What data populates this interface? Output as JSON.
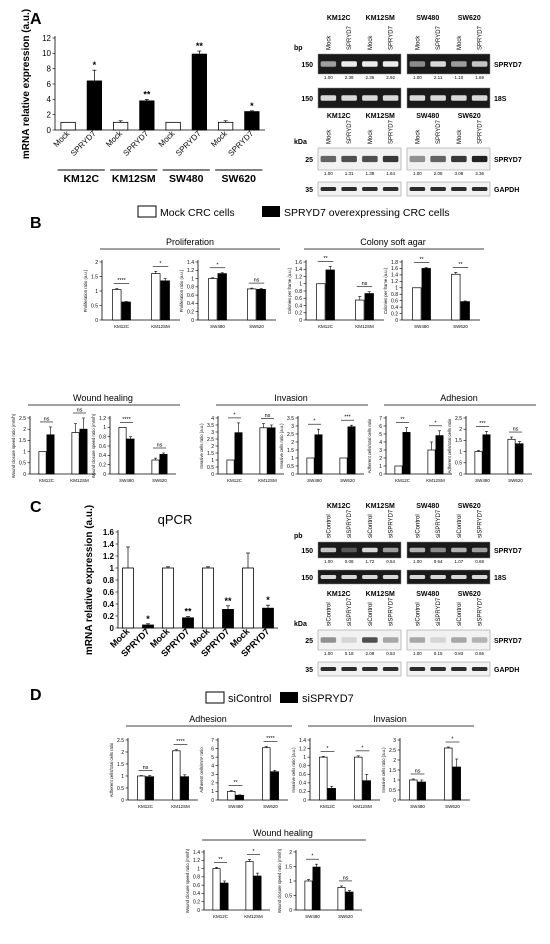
{
  "panels": {
    "A": "A",
    "B": "B",
    "C": "C",
    "D": "D"
  },
  "legend_B": {
    "mock": "Mock CRC cells",
    "overexp": "SPRYD7 overexpressing CRC cells"
  },
  "legend_D": {
    "control": "siControl",
    "si": "siSPRYD7"
  },
  "chart_data": [
    {
      "id": "A-qpcr",
      "type": "bar",
      "ylabel": "mRNA relative expression (a.u.)",
      "ylim": [
        0,
        12
      ],
      "yticks": [
        0,
        2,
        4,
        6,
        8,
        10,
        12
      ],
      "categories": [
        "Mock",
        "SPRYD7",
        "Mock",
        "SPRYD7",
        "Mock",
        "SPRYD7",
        "Mock",
        "SPRYD7"
      ],
      "values": [
        1.0,
        6.4,
        1.0,
        3.8,
        1.0,
        9.9,
        1.0,
        2.4
      ],
      "errors": [
        0,
        1.4,
        0.2,
        0.2,
        0,
        0.4,
        0.2,
        0.1
      ],
      "stars": [
        "",
        "*",
        "",
        "**",
        "",
        "**",
        "",
        "*"
      ],
      "groups": [
        "KM12C",
        "KM12SM",
        "SW480",
        "SW620"
      ]
    },
    {
      "id": "B-prolif-1",
      "type": "bar",
      "title": "Proliferation",
      "ylabel": "Proliferation ratio (a.u.)",
      "ylim": [
        0,
        2
      ],
      "yticks": [
        0,
        0.5,
        1,
        1.5,
        2
      ],
      "groups": [
        "KM12C",
        "KM12SM"
      ],
      "pairs": [
        [
          1.05,
          0.62
        ],
        [
          1.6,
          1.35
        ]
      ],
      "errors": [
        [
          0.03,
          0.02
        ],
        [
          0.08,
          0.08
        ]
      ],
      "sig": [
        "****",
        "*"
      ]
    },
    {
      "id": "B-prolif-2",
      "type": "bar",
      "ylabel": "Proliferation ratio (a.u.)",
      "ylim": [
        0,
        1.4
      ],
      "yticks": [
        0,
        0.2,
        0.4,
        0.6,
        0.8,
        1,
        1.2,
        1.4
      ],
      "groups": [
        "SW480",
        "SW620"
      ],
      "pairs": [
        [
          1.0,
          1.12
        ],
        [
          0.75,
          0.74
        ]
      ],
      "errors": [
        [
          0.02,
          0.02
        ],
        [
          0.02,
          0.02
        ]
      ],
      "sig": [
        "*",
        "ns"
      ]
    },
    {
      "id": "B-colony-1",
      "type": "bar",
      "title": "Colony soft agar",
      "ylabel": "Colonies per frame (a.u.)",
      "ylim": [
        0,
        1.6
      ],
      "yticks": [
        0,
        0.2,
        0.4,
        0.6,
        0.8,
        1,
        1.2,
        1.4,
        1.6
      ],
      "groups": [
        "KM12C",
        "KM12SM"
      ],
      "pairs": [
        [
          1.0,
          1.38
        ],
        [
          0.55,
          0.73
        ]
      ],
      "errors": [
        [
          0,
          0.1
        ],
        [
          0.1,
          0.05
        ]
      ],
      "sig": [
        "**",
        "ns"
      ]
    },
    {
      "id": "B-colony-2",
      "type": "bar",
      "ylabel": "Colonies per frame (a.u.)",
      "ylim": [
        0,
        1.8
      ],
      "yticks": [
        0,
        0.2,
        0.4,
        0.6,
        0.8,
        1,
        1.2,
        1.4,
        1.6,
        1.8
      ],
      "groups": [
        "SW480",
        "SW620"
      ],
      "pairs": [
        [
          1.0,
          1.6
        ],
        [
          1.42,
          0.57
        ]
      ],
      "errors": [
        [
          0,
          0.03
        ],
        [
          0.06,
          0.02
        ]
      ],
      "sig": [
        "**",
        "**"
      ]
    },
    {
      "id": "B-wound-1",
      "type": "bar",
      "title": "Wound healing",
      "ylabel": "Wound closure speed ratio (mm/h)",
      "ylim": [
        0,
        2.5
      ],
      "yticks": [
        0,
        0.5,
        1,
        1.5,
        2,
        2.5
      ],
      "groups": [
        "KM12C",
        "KM12SM"
      ],
      "pairs": [
        [
          1.0,
          1.75
        ],
        [
          1.85,
          2.0
        ]
      ],
      "errors": [
        [
          0,
          0.35
        ],
        [
          0.4,
          0.5
        ]
      ],
      "sig": [
        "ns",
        "ns"
      ]
    },
    {
      "id": "B-wound-2",
      "type": "bar",
      "ylabel": "Wound closure speed ratio (mm/h)",
      "ylim": [
        0,
        1.2
      ],
      "yticks": [
        0,
        0.2,
        0.4,
        0.6,
        0.8,
        1,
        1.2
      ],
      "groups": [
        "SW480",
        "SW620"
      ],
      "pairs": [
        [
          1.0,
          0.75
        ],
        [
          0.3,
          0.42
        ]
      ],
      "errors": [
        [
          0,
          0.05
        ],
        [
          0.04,
          0.03
        ]
      ],
      "sig": [
        "****",
        "ns"
      ]
    },
    {
      "id": "B-inv-1",
      "type": "bar",
      "title": "Invasion",
      "ylabel": "Invasive cells ratio (a.u.)",
      "ylim": [
        0,
        4
      ],
      "yticks": [
        0,
        0.5,
        1,
        1.5,
        2,
        2.5,
        3,
        3.5,
        4
      ],
      "groups": [
        "KM12C",
        "KM12SM"
      ],
      "pairs": [
        [
          1.0,
          2.95
        ],
        [
          3.3,
          3.3
        ]
      ],
      "errors": [
        [
          0,
          0.7
        ],
        [
          0.3,
          0.2
        ]
      ],
      "sig": [
        "*",
        "ns"
      ]
    },
    {
      "id": "B-inv-2",
      "type": "bar",
      "ylabel": "Invasive cells ratio (a.u.)",
      "ylim": [
        0,
        3.5
      ],
      "yticks": [
        0,
        0.5,
        1,
        1.5,
        2,
        2.5,
        3,
        3.5
      ],
      "groups": [
        "SW480",
        "SW620"
      ],
      "pairs": [
        [
          1.0,
          2.45
        ],
        [
          1.0,
          2.95
        ]
      ],
      "errors": [
        [
          0,
          0.35
        ],
        [
          0,
          0.1
        ]
      ],
      "sig": [
        "*",
        "***"
      ]
    },
    {
      "id": "B-adh-1",
      "type": "bar",
      "title": "Adhesion",
      "ylabel": "Adherent cells/total cells ratio",
      "ylim": [
        0,
        7
      ],
      "yticks": [
        0,
        1,
        2,
        3,
        4,
        5,
        6,
        7
      ],
      "groups": [
        "KM12C",
        "KM12SM"
      ],
      "pairs": [
        [
          1.0,
          5.2
        ],
        [
          3.0,
          4.8
        ]
      ],
      "errors": [
        [
          0,
          0.6
        ],
        [
          1.0,
          0.6
        ]
      ],
      "sig": [
        "**",
        "*"
      ]
    },
    {
      "id": "B-adh-2",
      "type": "bar",
      "ylabel": "Adherent cells/total cells ratio",
      "ylim": [
        0,
        2.5
      ],
      "yticks": [
        0,
        0.5,
        1,
        1.5,
        2,
        2.5
      ],
      "groups": [
        "SW480",
        "SW620"
      ],
      "pairs": [
        [
          1.0,
          1.75
        ],
        [
          1.55,
          1.35
        ]
      ],
      "errors": [
        [
          0.05,
          0.15
        ],
        [
          0.1,
          0.1
        ]
      ],
      "sig": [
        "***",
        "ns"
      ]
    },
    {
      "id": "C-qpcr",
      "type": "bar",
      "title": "qPCR",
      "ylabel": "mRNA relative expression (a.u.)",
      "ylim": [
        0,
        1.6
      ],
      "yticks": [
        0,
        0.2,
        0.4,
        0.6,
        0.8,
        1,
        1.2,
        1.4,
        1.6
      ],
      "categories": [
        "Mock",
        "SPRYD7",
        "Mock",
        "SPRYD7",
        "Mock",
        "SPRYD7",
        "Mock",
        "SPRYD7"
      ],
      "values": [
        1.0,
        0.05,
        1.0,
        0.17,
        1.0,
        0.31,
        1.0,
        0.33
      ],
      "errors": [
        0.35,
        0.02,
        0.02,
        0.02,
        0.02,
        0.06,
        0.25,
        0.05
      ],
      "stars": [
        "",
        "*",
        "",
        "**",
        "",
        "**",
        "",
        "*"
      ]
    },
    {
      "id": "D-adh-1",
      "type": "bar",
      "title": "Adhesion",
      "ylabel": "Adherent cells/total cells ratio",
      "ylim": [
        0,
        2.5
      ],
      "yticks": [
        0,
        0.5,
        1,
        1.5,
        2,
        2.5
      ],
      "groups": [
        "KM12C",
        "KM12SM"
      ],
      "pairs": [
        [
          1.0,
          0.97
        ],
        [
          2.05,
          0.97
        ]
      ],
      "errors": [
        [
          0.02,
          0.05
        ],
        [
          0.05,
          0.08
        ]
      ],
      "sig": [
        "ns",
        "****"
      ]
    },
    {
      "id": "D-adh-2",
      "type": "bar",
      "ylabel": "Adherent cells/mm² ratio",
      "ylim": [
        0,
        7
      ],
      "yticks": [
        0,
        1,
        2,
        3,
        4,
        5,
        6,
        7
      ],
      "groups": [
        "SW480",
        "SW620"
      ],
      "pairs": [
        [
          1.0,
          0.55
        ],
        [
          6.1,
          3.3
        ]
      ],
      "errors": [
        [
          0.1,
          0.05
        ],
        [
          0.15,
          0.15
        ]
      ],
      "sig": [
        "**",
        "****"
      ]
    },
    {
      "id": "D-inv-1",
      "type": "bar",
      "title": "Invasion",
      "ylabel": "Invasive cells ratio (a.u.)",
      "ylim": [
        0,
        1.4
      ],
      "yticks": [
        0,
        0.2,
        0.4,
        0.6,
        0.8,
        1,
        1.2,
        1.4
      ],
      "groups": [
        "KM12C",
        "KM12SM"
      ],
      "pairs": [
        [
          1.0,
          0.27
        ],
        [
          1.0,
          0.45
        ]
      ],
      "errors": [
        [
          0.02,
          0.05
        ],
        [
          0.03,
          0.15
        ]
      ],
      "sig": [
        "*",
        "*"
      ]
    },
    {
      "id": "D-inv-2",
      "type": "bar",
      "ylabel": "Invasive cells ratio (a.u.)",
      "ylim": [
        0,
        3
      ],
      "yticks": [
        0,
        0.5,
        1,
        1.5,
        2,
        2.5,
        3
      ],
      "groups": [
        "SW480",
        "SW620"
      ],
      "pairs": [
        [
          1.0,
          0.9
        ],
        [
          2.6,
          1.65
        ]
      ],
      "errors": [
        [
          0.05,
          0.1
        ],
        [
          0.05,
          0.4
        ]
      ],
      "sig": [
        "ns",
        "*"
      ]
    },
    {
      "id": "D-wound-1",
      "type": "bar",
      "title": "Wound healing",
      "ylabel": "Wound closure speed ratio (mm/h)",
      "ylim": [
        0,
        1.4
      ],
      "yticks": [
        0,
        0.2,
        0.4,
        0.6,
        0.8,
        1,
        1.2,
        1.4
      ],
      "groups": [
        "KM12C",
        "KM12SM"
      ],
      "pairs": [
        [
          1.0,
          0.65
        ],
        [
          1.17,
          0.82
        ]
      ],
      "errors": [
        [
          0.03,
          0.05
        ],
        [
          0.05,
          0.07
        ]
      ],
      "sig": [
        "**",
        "*"
      ]
    },
    {
      "id": "D-wound-2",
      "type": "bar",
      "ylabel": "Wound closure speed ratio (mm/h)",
      "ylim": [
        0,
        2
      ],
      "yticks": [
        0,
        0.5,
        1,
        1.5,
        2
      ],
      "groups": [
        "SW480",
        "SW620"
      ],
      "pairs": [
        [
          1.0,
          1.48
        ],
        [
          0.78,
          0.62
        ]
      ],
      "errors": [
        [
          0.05,
          0.1
        ],
        [
          0.05,
          0.05
        ]
      ],
      "sig": [
        "*",
        "ns"
      ]
    }
  ],
  "blots": [
    {
      "id": "A-pcr",
      "kind": "gel",
      "unit": "bp",
      "header_groups": [
        "KM12C",
        "KM12SM",
        "SW480",
        "SW620"
      ],
      "lanes": [
        "Mock",
        "SPRYD7",
        "Mock",
        "SPRYD7",
        "Mock",
        "SPRYD7",
        "Mock",
        "SPRYD7"
      ],
      "rows": [
        {
          "marker": "150",
          "label": "SPRYD7",
          "quant": [
            "1.00",
            "2.39",
            "2.36",
            "2.92",
            "1.00",
            "2.11",
            "1.10",
            "1.69"
          ],
          "intens": [
            0.5,
            0.9,
            0.9,
            0.9,
            0.4,
            0.8,
            0.5,
            0.7
          ]
        },
        {
          "marker": "150",
          "label": "18S",
          "quant": [],
          "intens": [
            0.8,
            0.8,
            0.8,
            0.8,
            0.8,
            0.8,
            0.8,
            0.8
          ]
        }
      ]
    },
    {
      "id": "A-wb",
      "kind": "wb",
      "unit": "kDa",
      "header_groups": [
        "KM12C",
        "KM12SM",
        "SW480",
        "SW620"
      ],
      "lanes": [
        "Mock",
        "SPRYD7",
        "Mock",
        "SPRYD7",
        "Mock",
        "SPRYD7",
        "Mock",
        "SPRYD7"
      ],
      "rows": [
        {
          "marker": "25",
          "label": "SPRYD7",
          "quant": [
            "1.00",
            "1.31",
            "1.38",
            "1.64",
            "1.00",
            "2.08",
            "3.08",
            "3.36"
          ],
          "intens": [
            0.6,
            0.7,
            0.7,
            0.8,
            0.4,
            0.6,
            0.8,
            0.9
          ]
        },
        {
          "marker": "35",
          "label": "GAPDH",
          "quant": [],
          "intens": [
            0.85,
            0.85,
            0.85,
            0.85,
            0.85,
            0.85,
            0.85,
            0.85
          ]
        }
      ]
    },
    {
      "id": "C-pcr",
      "kind": "gel",
      "unit": "pb",
      "header_groups": [
        "KM12C",
        "KM12SM",
        "SW480",
        "SW620"
      ],
      "lanes": [
        "siControl",
        "siSPRYD7",
        "siControl",
        "siSPRYD7",
        "siControl",
        "siSPRYD7",
        "siControl",
        "siSPRYD7"
      ],
      "rows": [
        {
          "marker": "150",
          "label": "SPRYD7",
          "quant": [
            "1.00",
            "0.08",
            "1.72",
            "0.54",
            "1.00",
            "0.64",
            "1.07",
            "0.69"
          ],
          "intens": [
            0.7,
            0.15,
            0.8,
            0.5,
            0.6,
            0.4,
            0.6,
            0.5
          ]
        },
        {
          "marker": "150",
          "label": "18S",
          "quant": [],
          "intens": [
            0.8,
            0.8,
            0.8,
            0.8,
            0.8,
            0.8,
            0.8,
            0.8
          ]
        }
      ]
    },
    {
      "id": "C-wb",
      "kind": "wb",
      "unit": "kDa",
      "header_groups": [
        "KM12C",
        "KM12SM",
        "SW480",
        "SW620"
      ],
      "lanes": [
        "siControl",
        "siSPRYD7",
        "siControl",
        "siSPRYD7",
        "siControl",
        "siSPRYD7",
        "siControl",
        "siSPRYD7"
      ],
      "rows": [
        {
          "marker": "25",
          "label": "SPRYD7",
          "quant": [
            "1.00",
            "0.18",
            "2.08",
            "0.53",
            "1.00",
            "0.15",
            "0.83",
            "0.65"
          ],
          "intens": [
            0.4,
            0.1,
            0.7,
            0.3,
            0.3,
            0.1,
            0.3,
            0.25
          ]
        },
        {
          "marker": "35",
          "label": "GAPDH",
          "quant": [],
          "intens": [
            0.85,
            0.85,
            0.85,
            0.85,
            0.85,
            0.85,
            0.85,
            0.85
          ]
        }
      ]
    }
  ]
}
